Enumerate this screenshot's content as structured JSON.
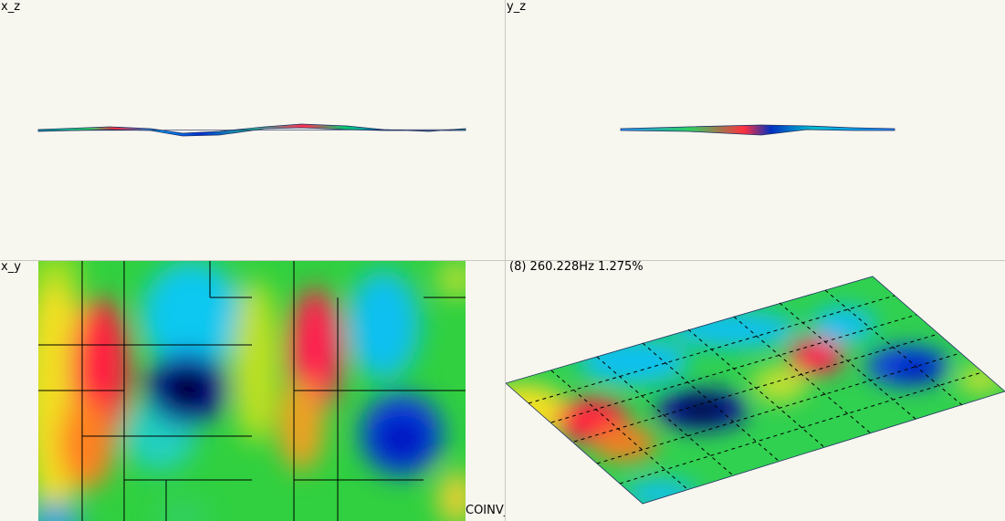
{
  "viewports": {
    "xz": {
      "label": "x_z"
    },
    "yz": {
      "label": "y_z"
    },
    "xy": {
      "label": "x_y"
    },
    "iso": {
      "label": "(8) 260.228Hz 1.275%"
    }
  },
  "footer_label": "COINV_DASP",
  "mode": {
    "number": 8,
    "frequency": "260.228Hz",
    "damping": "1.275%"
  }
}
